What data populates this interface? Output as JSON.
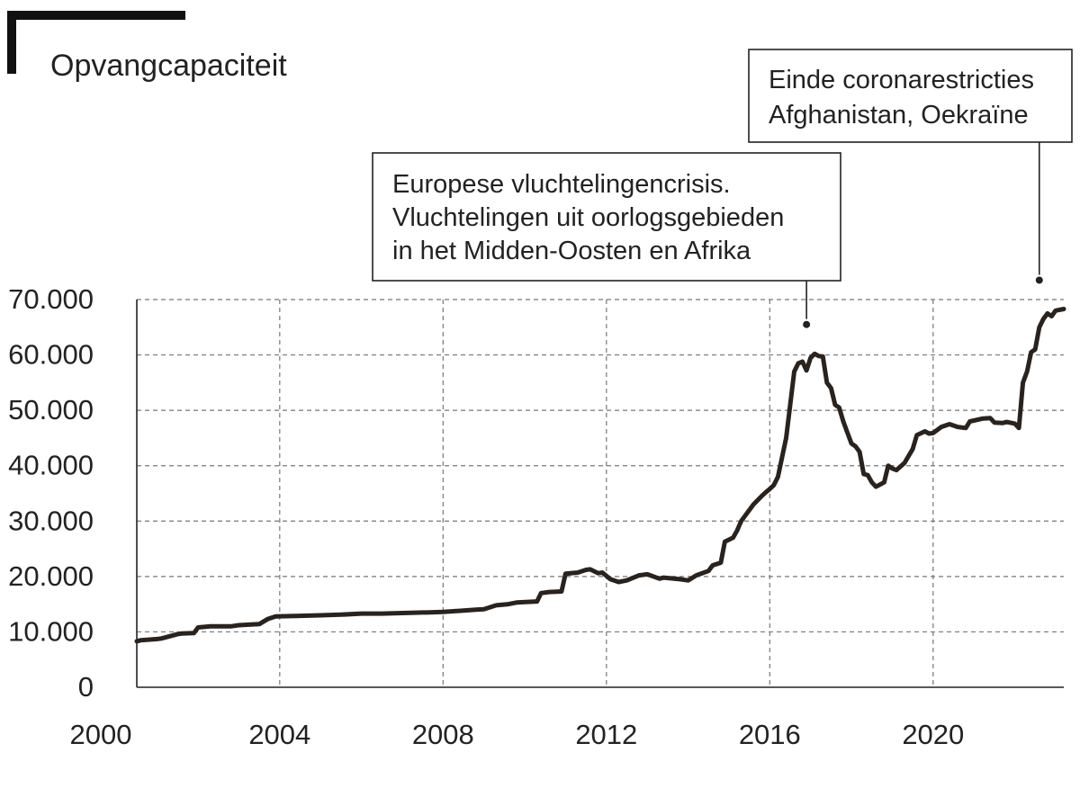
{
  "chart_data": {
    "type": "line",
    "title": "Opvangcapaciteit",
    "xlabel": "",
    "ylabel": "",
    "xlim": [
      2000.5,
      2023.2
    ],
    "ylim": [
      0,
      70000
    ],
    "x_ticks": [
      2000,
      2004,
      2008,
      2012,
      2016,
      2020
    ],
    "x_tick_labels": [
      "2000",
      "2004",
      "2008",
      "2012",
      "2016",
      "2020"
    ],
    "y_ticks": [
      0,
      10000,
      20000,
      30000,
      40000,
      50000,
      60000,
      70000
    ],
    "y_tick_labels": [
      "0",
      "10.000",
      "20.000",
      "30.000",
      "40.000",
      "50.000",
      "60.000",
      "70.000"
    ],
    "grid": true,
    "series_color": "#2a221d",
    "series": [
      {
        "x": [
          2000.5,
          2000.6,
          2001.0,
          2001.1,
          2001.5,
          2001.6,
          2001.9,
          2002.0,
          2002.3,
          2002.8,
          2003.0,
          2003.5,
          2003.7,
          2003.9,
          2004.5,
          2005.0,
          2005.5,
          2006.0,
          2006.5,
          2007.0,
          2007.5,
          2007.6,
          2008.0,
          2008.8,
          2009.0,
          2009.3,
          2009.6,
          2009.8,
          2010.3,
          2010.4,
          2010.6,
          2010.9,
          2011.0,
          2011.3,
          2011.5,
          2011.6,
          2011.8,
          2011.9,
          2012.1,
          2012.3,
          2012.5,
          2012.8,
          2013.0,
          2013.3,
          2013.4,
          2013.8,
          2014.0,
          2014.2,
          2014.5,
          2014.6,
          2014.8,
          2014.9,
          2015.1,
          2015.2,
          2015.3,
          2015.5,
          2015.6,
          2015.8,
          2015.9,
          2016.0,
          2016.1,
          2016.2,
          2016.4,
          2016.5,
          2016.6,
          2016.7,
          2016.8,
          2016.9,
          2017.0,
          2017.1,
          2017.2,
          2017.3,
          2017.4,
          2017.5,
          2017.6,
          2017.7,
          2017.8,
          2017.9,
          2018.0,
          2018.1,
          2018.2,
          2018.3,
          2018.4,
          2018.5,
          2018.6,
          2018.8,
          2018.9,
          2019.0,
          2019.1,
          2019.3,
          2019.5,
          2019.6,
          2019.8,
          2019.9,
          2020.0,
          2020.2,
          2020.4,
          2020.6,
          2020.8,
          2020.9,
          2021.2,
          2021.4,
          2021.5,
          2021.7,
          2021.8,
          2022.0,
          2022.1,
          2022.2,
          2022.3,
          2022.4,
          2022.5,
          2022.6,
          2022.7,
          2022.8,
          2022.9,
          2023.0,
          2023.2
        ],
        "y": [
          8300,
          8500,
          8700,
          8800,
          9600,
          9700,
          9800,
          10800,
          11000,
          11000,
          11200,
          11400,
          12300,
          12800,
          12900,
          13000,
          13100,
          13300,
          13300,
          13400,
          13500,
          13500,
          13600,
          14000,
          14100,
          14800,
          15000,
          15300,
          15500,
          17000,
          17200,
          17300,
          20500,
          20700,
          21200,
          21300,
          20600,
          20700,
          19500,
          19000,
          19300,
          20200,
          20400,
          19600,
          19800,
          19500,
          19300,
          20200,
          21000,
          22000,
          22500,
          26300,
          27000,
          28300,
          30000,
          32000,
          33000,
          34500,
          35200,
          35800,
          36500,
          38000,
          45000,
          51000,
          57000,
          58500,
          58800,
          57200,
          59500,
          60200,
          59800,
          59700,
          55000,
          54000,
          51000,
          50500,
          48000,
          46000,
          44000,
          43500,
          42500,
          38500,
          38300,
          37000,
          36200,
          37000,
          40000,
          39500,
          39200,
          40500,
          43000,
          45500,
          46200,
          45800,
          45900,
          47000,
          47500,
          47000,
          46800,
          48000,
          48500,
          48600,
          47800,
          47700,
          47900,
          47600,
          46800,
          55000,
          57000,
          60500,
          61000,
          65000,
          66500,
          67500,
          67000,
          68000,
          68300
        ]
      }
    ],
    "annotations": [
      {
        "lines": [
          "Europese vluchtelingencrisis.",
          "Vluchtelingen uit oorlogsgebieden",
          "in het Midden-Oosten en Afrika"
        ],
        "x": 2016.9,
        "y": 65500
      },
      {
        "lines": [
          "Einde coronarestricties",
          "Afghanistan, Oekraïne"
        ],
        "x": 2022.6,
        "y": 73500
      }
    ]
  }
}
